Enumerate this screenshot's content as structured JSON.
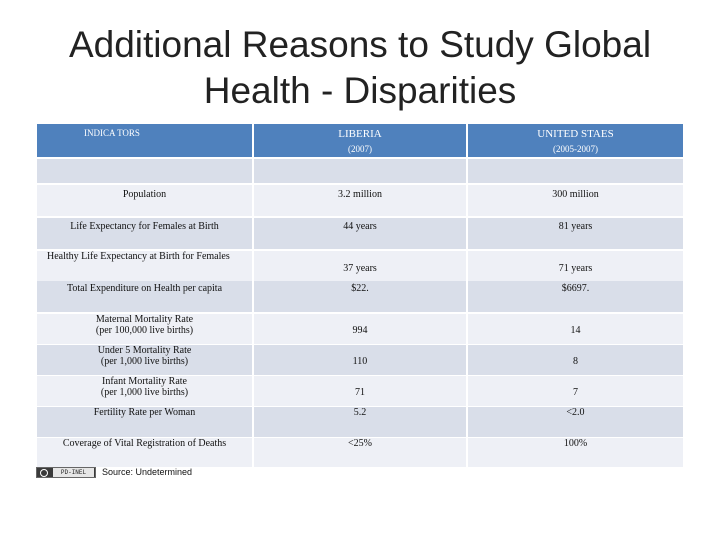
{
  "slide": {
    "title_line1": "Additional Reasons to Study Global",
    "title_line2": "Health - Disparities"
  },
  "table": {
    "header": {
      "indicators": "INDICA TORS",
      "liberia": "LIBERIA",
      "liberia_years": "(2007)",
      "us": "UNITED STAES",
      "us_years": "(2005-2007)"
    },
    "rows": [
      {
        "indicator": "Population",
        "liberia": "3.2 million",
        "us": "300 million"
      },
      {
        "indicator": "Life Expectancy for Females at Birth",
        "liberia": "44 years",
        "us": "81 years"
      },
      {
        "indicator": "Healthy Life Expectancy at Birth for Females",
        "liberia": "37 years",
        "us": "71 years"
      },
      {
        "indicator": "Total Expenditure on Health per capita",
        "liberia": "$22.",
        "us": "$6697."
      },
      {
        "indicator_line1": "Maternal Mortality Rate",
        "indicator_line2": "(per 100,000 live births)",
        "liberia": "994",
        "us": "14"
      },
      {
        "indicator_line1": "Under 5 Mortality Rate",
        "indicator_line2": "(per 1,000 live births)",
        "liberia": "110",
        "us": "8"
      },
      {
        "indicator_line1": "Infant Mortality Rate",
        "indicator_line2": "(per 1,000 live births)",
        "liberia": "71",
        "us": "7"
      },
      {
        "indicator": "Fertility Rate per Woman",
        "liberia": "5.2",
        "us": "<2.0"
      },
      {
        "indicator": "Coverage of Vital Registration of Deaths",
        "liberia": "<25%",
        "us": "100%"
      }
    ]
  },
  "footer": {
    "license_badge": "PD-INEL",
    "source": "Source: Undetermined"
  }
}
